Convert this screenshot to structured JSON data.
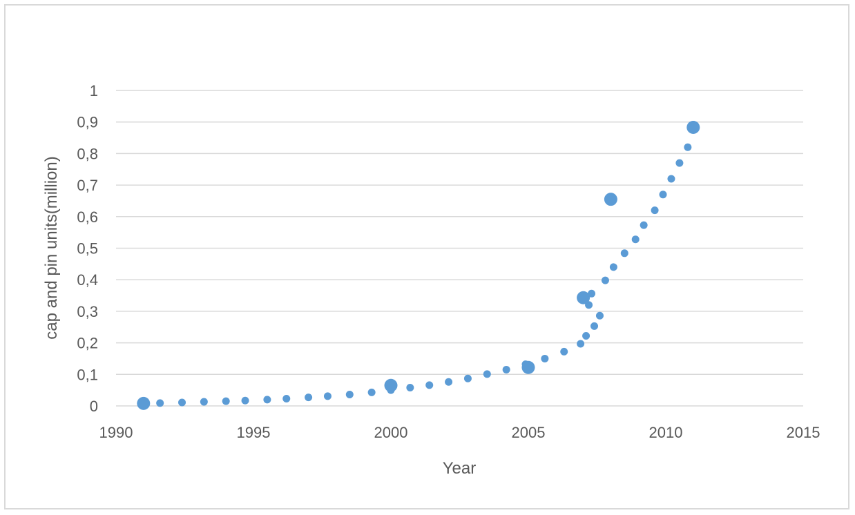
{
  "chart_data": {
    "type": "scatter",
    "title": "",
    "xlabel": "Year",
    "ylabel": "cap and pin units(million)",
    "xlim": [
      1990,
      2015
    ],
    "ylim": [
      0,
      1
    ],
    "x_ticks": [
      "1990",
      "1995",
      "2000",
      "2005",
      "2010",
      "2015"
    ],
    "y_ticks": [
      "0",
      "0,1",
      "0,2",
      "0,3",
      "0,4",
      "0,5",
      "0,6",
      "0,7",
      "0,8",
      "0,9",
      "1"
    ],
    "grid": "horizontal",
    "legend": "none",
    "marker_color": "#5b9bd5",
    "gridline_color": "#d9d9d9",
    "series": [
      {
        "marker": "small",
        "points": [
          [
            1991.6,
            0.009
          ],
          [
            1992.4,
            0.011
          ],
          [
            1993.2,
            0.013
          ],
          [
            1994.0,
            0.015
          ],
          [
            1994.7,
            0.017
          ],
          [
            1995.5,
            0.02
          ],
          [
            1996.2,
            0.023
          ],
          [
            1997.0,
            0.027
          ],
          [
            1997.7,
            0.031
          ],
          [
            1998.5,
            0.036
          ],
          [
            1999.3,
            0.043
          ],
          [
            2000.0,
            0.05
          ],
          [
            2000.7,
            0.058
          ],
          [
            2001.4,
            0.066
          ],
          [
            2002.1,
            0.076
          ],
          [
            2002.8,
            0.087
          ],
          [
            2003.5,
            0.101
          ],
          [
            2004.2,
            0.115
          ],
          [
            2004.9,
            0.132
          ],
          [
            2005.6,
            0.15
          ],
          [
            2006.3,
            0.172
          ],
          [
            2006.9,
            0.197
          ],
          [
            2007.1,
            0.222
          ],
          [
            2007.4,
            0.253
          ],
          [
            2007.6,
            0.286
          ],
          [
            2007.2,
            0.32
          ],
          [
            2007.3,
            0.356
          ],
          [
            2007.8,
            0.398
          ],
          [
            2008.1,
            0.44
          ],
          [
            2008.5,
            0.484
          ],
          [
            2008.9,
            0.528
          ],
          [
            2009.2,
            0.573
          ],
          [
            2009.6,
            0.62
          ],
          [
            2009.9,
            0.67
          ],
          [
            2010.2,
            0.72
          ],
          [
            2010.5,
            0.77
          ],
          [
            2010.8,
            0.82
          ]
        ]
      },
      {
        "marker": "large",
        "points": [
          [
            1991.0,
            0.008
          ],
          [
            2000.0,
            0.065
          ],
          [
            2005.0,
            0.122
          ],
          [
            2007.0,
            0.343
          ],
          [
            2008.0,
            0.655
          ],
          [
            2011.0,
            0.883
          ]
        ]
      }
    ]
  }
}
